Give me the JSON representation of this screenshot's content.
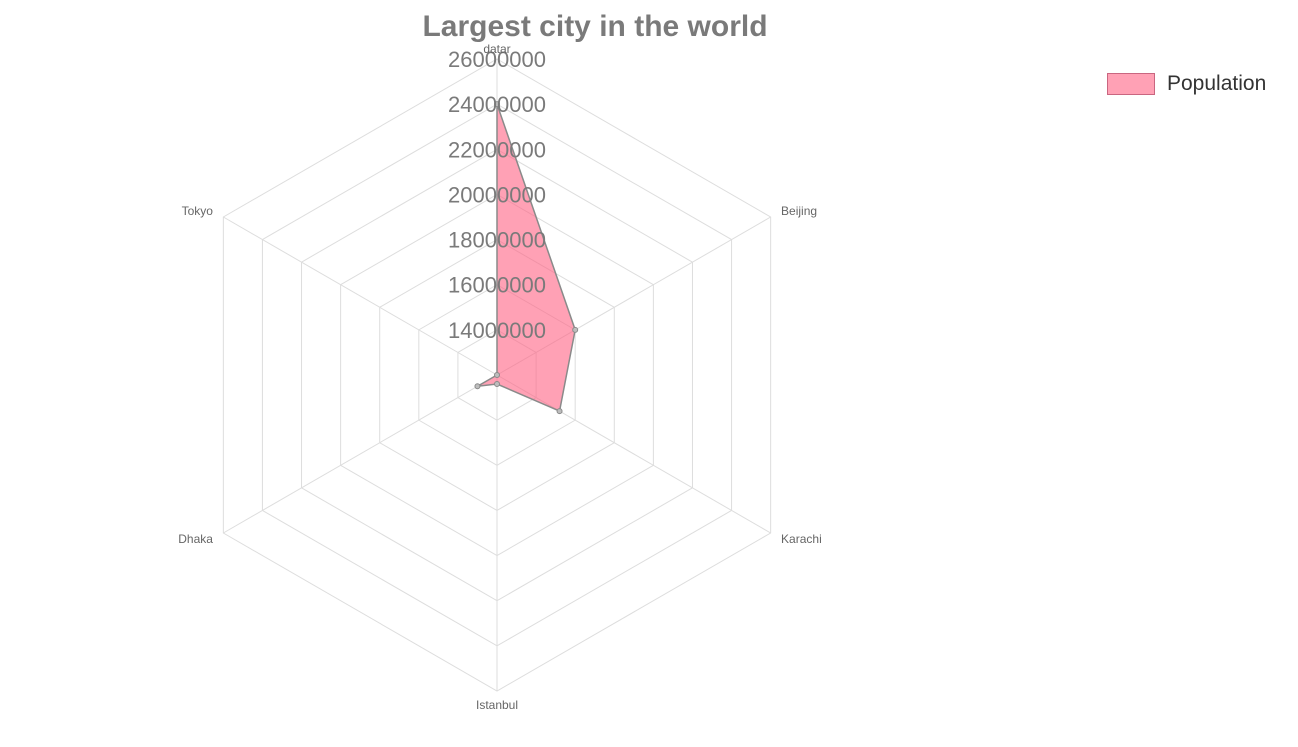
{
  "chart_data": {
    "type": "radar",
    "title": "Largest city in the world",
    "labels": [
      "datar",
      "Beijing",
      "Karachi",
      "Istanbul",
      "Dhaka",
      "Tokyo"
    ],
    "series": [
      {
        "name": "Population",
        "values": [
          24000000,
          16000000,
          15200000,
          12400000,
          13000000,
          11200000
        ],
        "fill_color": "#ff6384",
        "fill_opacity": 0.6,
        "line_color": "#8a8a8a"
      }
    ],
    "r_ticks": [
      "14000000",
      "16000000",
      "18000000",
      "20000000",
      "22000000",
      "24000000",
      "26000000"
    ],
    "r_min": 12000000,
    "r_max": 26000000,
    "grid": true,
    "legend_position": "top-right"
  }
}
